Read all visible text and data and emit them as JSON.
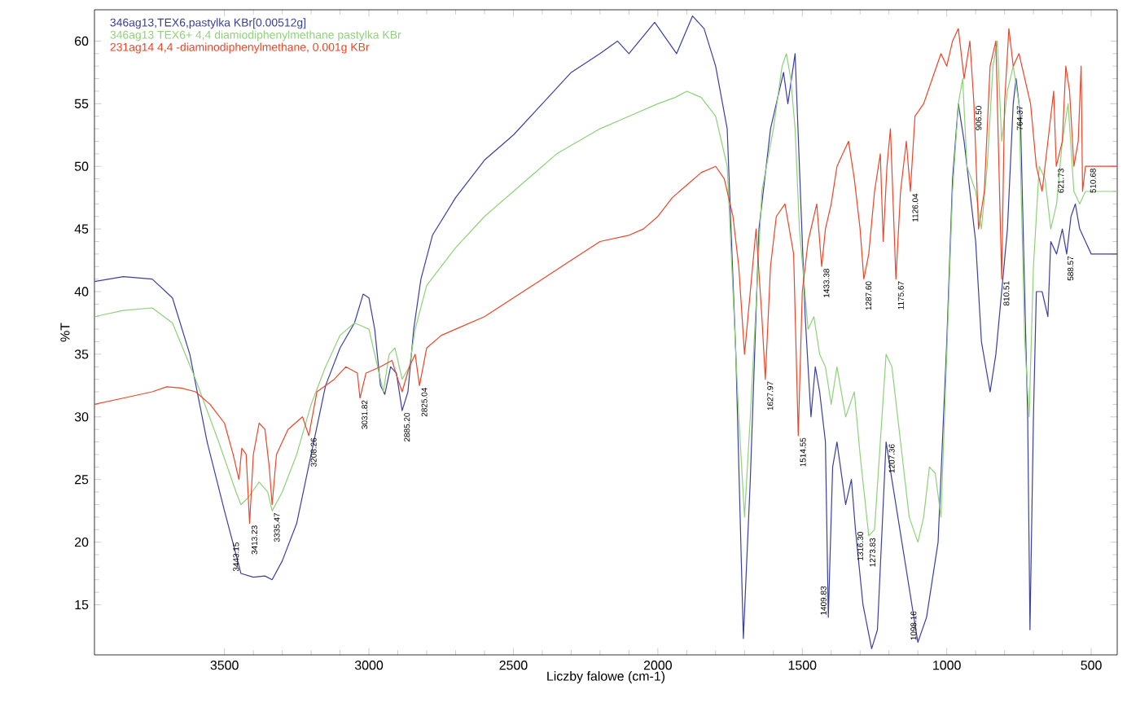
{
  "chart_data": {
    "type": "line",
    "xlabel": "Liczby falowe (cm-1)",
    "ylabel": "%T",
    "xlim": [
      3950,
      410
    ],
    "ylim": [
      11,
      62.5
    ],
    "xticks": [
      3500,
      3000,
      2500,
      2000,
      1500,
      1000,
      500
    ],
    "yticks": [
      15,
      20,
      25,
      30,
      35,
      40,
      45,
      50,
      55,
      60
    ],
    "legend": "top left",
    "marker": "none",
    "line_style": "solid",
    "series": [
      {
        "name": "346ag13,TEX6,pastylka KBr[0.00512g]",
        "color": "#3a3fa0",
        "x": [
          3950,
          3850,
          3750,
          3680,
          3620,
          3560,
          3500,
          3460,
          3443,
          3400,
          3360,
          3335,
          3300,
          3250,
          3200,
          3150,
          3100,
          3050,
          3020,
          3000,
          2980,
          2960,
          2945,
          2925,
          2905,
          2885,
          2865,
          2845,
          2820,
          2780,
          2700,
          2600,
          2500,
          2400,
          2300,
          2200,
          2140,
          2100,
          2011,
          1935,
          1880,
          1840,
          1800,
          1760,
          1730,
          1704,
          1680,
          1650,
          1610,
          1580,
          1565,
          1550,
          1525,
          1505,
          1490,
          1470,
          1455,
          1440,
          1420,
          1410,
          1395,
          1380,
          1350,
          1330,
          1316,
          1290,
          1260,
          1240,
          1210,
          1190,
          1160,
          1140,
          1100,
          1070,
          1050,
          1030,
          1000,
          980,
          960,
          940,
          900,
          880,
          850,
          830,
          810,
          790,
          770,
          760,
          745,
          720,
          712,
          700,
          690,
          670,
          650,
          640,
          620,
          600,
          585,
          570,
          555,
          540,
          520,
          500,
          450,
          410
        ],
        "values": [
          40.8,
          41.2,
          41,
          39.5,
          35,
          28,
          22.5,
          19,
          17.5,
          17.2,
          17.3,
          17,
          18.5,
          21.5,
          27,
          32.5,
          35.5,
          37.5,
          39.8,
          39.5,
          37,
          32.5,
          31.8,
          34,
          33.5,
          30.5,
          32,
          37,
          41,
          44.5,
          47.5,
          50.5,
          52.5,
          55,
          57.5,
          59,
          60,
          59,
          61.5,
          59,
          62,
          61,
          58,
          53,
          35,
          12.3,
          25,
          45,
          53,
          56,
          57.5,
          55,
          59,
          47,
          38,
          30,
          34,
          32,
          28,
          14,
          26,
          28,
          23,
          25,
          21,
          15,
          11.5,
          13,
          28,
          25,
          null,
          null,
          12,
          14,
          null,
          20,
          36,
          49,
          55,
          52,
          44,
          36,
          32,
          35,
          40,
          45,
          55,
          57,
          54,
          30,
          13,
          30,
          40,
          40,
          38,
          44,
          43,
          45,
          43,
          46,
          47,
          45,
          44,
          43,
          43,
          43
        ]
      },
      {
        "name": "346ag13 TEX6+ 4,4 diamiodiphenylmethane pastylka KBr",
        "color": "#8fd07a",
        "x": [
          3950,
          3850,
          3750,
          3680,
          3600,
          3520,
          3460,
          3443,
          3420,
          3380,
          3350,
          3335,
          3300,
          3250,
          3200,
          3150,
          3100,
          3050,
          3020,
          3000,
          2970,
          2950,
          2930,
          2910,
          2885,
          2860,
          2840,
          2800,
          2700,
          2600,
          2500,
          2400,
          2350,
          2200,
          2100,
          2000,
          1940,
          1900,
          1850,
          1800,
          1760,
          1720,
          1700,
          1680,
          1640,
          1600,
          1570,
          1555,
          1540,
          1525,
          1510,
          1480,
          1460,
          1440,
          1420,
          1400,
          1380,
          1350,
          1320,
          1300,
          1270,
          1250,
          1230,
          1210,
          1190,
          1170,
          1130,
          1100,
          1080,
          1060,
          1040,
          1020,
          1000,
          980,
          960,
          945,
          930,
          900,
          880,
          860,
          840,
          825,
          810,
          790,
          770,
          750,
          730,
          715,
          700,
          680,
          660,
          640,
          620,
          600,
          580,
          560,
          540,
          520,
          500,
          410
        ],
        "values": [
          38,
          38.5,
          38.7,
          37.5,
          33,
          28,
          24,
          23,
          23.5,
          24.8,
          24,
          22.5,
          24,
          27,
          31,
          34,
          36.5,
          37.5,
          37.2,
          37,
          34,
          32,
          35,
          35.5,
          33,
          34,
          37,
          40.5,
          43.5,
          46,
          48,
          50,
          51,
          53,
          54,
          55,
          55.5,
          56,
          55.5,
          54,
          50,
          30,
          22,
          30,
          48,
          53,
          58,
          59,
          57,
          53,
          45,
          37,
          38,
          35,
          34,
          31,
          34,
          30,
          32,
          27,
          20.5,
          21,
          28,
          35,
          34,
          30,
          22,
          20,
          22,
          26,
          25.5,
          22,
          35,
          48,
          55,
          57,
          50,
          48,
          45,
          50,
          58,
          60,
          52,
          56,
          58,
          55,
          36,
          30,
          42,
          50,
          49,
          45,
          47,
          52,
          55,
          48,
          47,
          48,
          48,
          48
        ]
      },
      {
        "name": "231ag14 4,4 -diaminodiphenylmethane, 0.001g KBr",
        "color": "#e8472a",
        "x": [
          3950,
          3850,
          3750,
          3700,
          3650,
          3600,
          3550,
          3500,
          3470,
          3450,
          3440,
          3425,
          3413,
          3400,
          3380,
          3360,
          3345,
          3335,
          3320,
          3280,
          3230,
          3208,
          3180,
          3120,
          3080,
          3040,
          3031,
          3010,
          2960,
          2920,
          2900,
          2885,
          2860,
          2840,
          2825,
          2800,
          2750,
          2700,
          2600,
          2500,
          2400,
          2300,
          2200,
          2100,
          2050,
          2000,
          1950,
          1900,
          1850,
          1800,
          1770,
          1740,
          1720,
          1700,
          1680,
          1660,
          1640,
          1628,
          1610,
          1590,
          1560,
          1530,
          1514,
          1500,
          1480,
          1450,
          1433,
          1420,
          1400,
          1380,
          1360,
          1340,
          1320,
          1300,
          1287,
          1270,
          1250,
          1230,
          1220,
          1207,
          1195,
          1176,
          1160,
          1140,
          1126,
          1110,
          1080,
          1050,
          1020,
          1000,
          980,
          960,
          940,
          920,
          906,
          890,
          870,
          850,
          830,
          810,
          800,
          785,
          770,
          750,
          730,
          710,
          690,
          670,
          650,
          630,
          621,
          600,
          588,
          575,
          560,
          545,
          535,
          530,
          520,
          510,
          480,
          410
        ],
        "values": [
          31,
          31.5,
          32,
          32.4,
          32.3,
          32,
          31,
          29.5,
          27,
          25,
          27.5,
          27,
          21.5,
          27,
          29.5,
          29,
          26,
          23,
          27,
          29,
          30,
          28.5,
          32,
          33,
          34,
          33.5,
          31.5,
          33.5,
          34,
          34.5,
          33,
          32,
          34,
          35,
          32.5,
          35.5,
          36.5,
          37,
          38,
          39.5,
          41,
          42.5,
          44,
          44.5,
          45,
          46,
          47.5,
          48.5,
          49.5,
          50,
          49,
          46,
          42,
          35,
          40,
          45,
          38,
          33,
          42,
          46,
          47,
          43,
          28.5,
          40,
          44,
          47,
          42,
          45,
          47,
          50,
          51,
          52,
          49,
          45,
          41,
          43,
          48,
          51,
          44,
          50,
          53,
          41,
          48,
          52,
          48,
          54,
          55,
          57,
          59,
          58,
          60,
          61,
          57,
          60,
          55,
          45,
          48,
          58,
          60,
          41,
          55,
          61,
          58,
          59,
          57,
          55,
          50,
          48,
          52,
          56,
          50,
          52,
          58,
          56,
          50,
          52,
          58,
          48,
          50,
          50,
          50,
          50
        ]
      }
    ],
    "annotations": [
      {
        "text": "3443.15",
        "x": 3443.15,
        "y": 17.5
      },
      {
        "text": "3413.23",
        "x": 3413.23,
        "y": 21.5
      },
      {
        "text": "3335.47",
        "x": 3335.47,
        "y": 22.5
      },
      {
        "text": "3208.26",
        "x": 3208.26,
        "y": 28.5
      },
      {
        "text": "3031.82",
        "x": 3031.82,
        "y": 31.5
      },
      {
        "text": "2885.20",
        "x": 2885.2,
        "y": 30.5
      },
      {
        "text": "2825.04",
        "x": 2825.04,
        "y": 32.5
      },
      {
        "text": "1627.97",
        "x": 1627.97,
        "y": 33
      },
      {
        "text": "1514.55",
        "x": 1514.55,
        "y": 28.5
      },
      {
        "text": "1433.38",
        "x": 1433.38,
        "y": 42
      },
      {
        "text": "1409.83",
        "x": 1409.83,
        "y": 14
      },
      {
        "text": "1316.30",
        "x": 1316.3,
        "y": 21
      },
      {
        "text": "1287.60",
        "x": 1287.6,
        "y": 41
      },
      {
        "text": "1273.83",
        "x": 1273.83,
        "y": 20.5
      },
      {
        "text": "1207.36",
        "x": 1207.36,
        "y": 28
      },
      {
        "text": "1175.67",
        "x": 1175.67,
        "y": 41
      },
      {
        "text": "1126.04",
        "x": 1126.04,
        "y": 48
      },
      {
        "text": "1098.16",
        "x": 1098.16,
        "y": 12
      },
      {
        "text": "906.50",
        "x": 906.5,
        "y": 55
      },
      {
        "text": "810.51",
        "x": 810.51,
        "y": 41
      },
      {
        "text": "764.37",
        "x": 764.37,
        "y": 55
      },
      {
        "text": "621.73",
        "x": 621.73,
        "y": 50
      },
      {
        "text": "588.57",
        "x": 588.57,
        "y": 43
      },
      {
        "text": "510.68",
        "x": 510.68,
        "y": 50
      }
    ]
  }
}
